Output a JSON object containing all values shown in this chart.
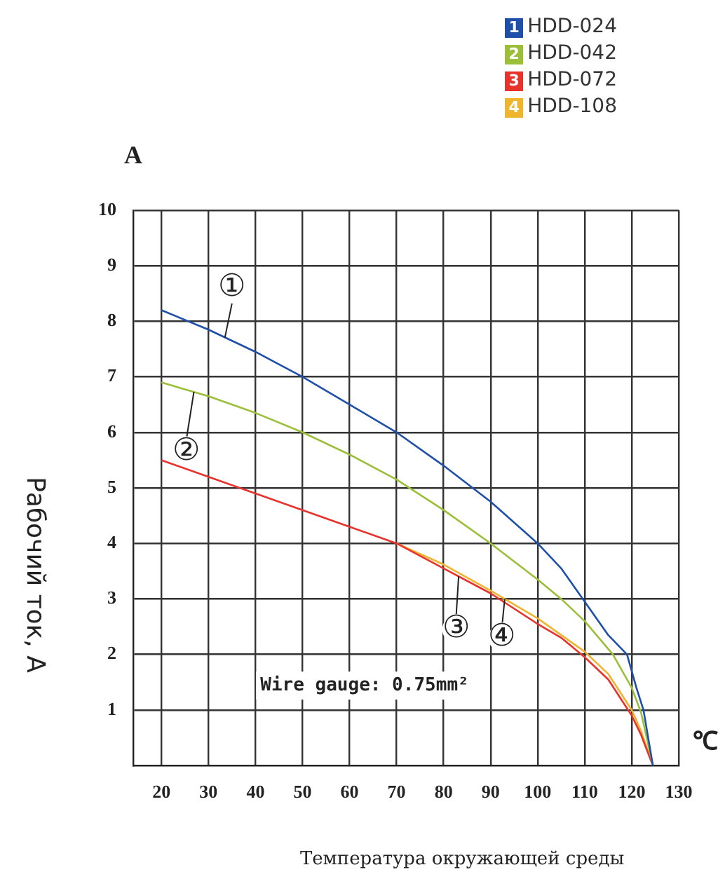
{
  "chart_data": {
    "type": "line",
    "xlabel": "Температура окружающей среды",
    "ylabel": "Рабочий ток, А",
    "xlim": [
      14,
      130
    ],
    "xticks": [
      20,
      30,
      40,
      50,
      60,
      70,
      80,
      90,
      100,
      110,
      120,
      130
    ],
    "ylim": [
      0,
      10
    ],
    "yticks": [
      1,
      2,
      3,
      4,
      5,
      6,
      7,
      8,
      9,
      10
    ],
    "grid": true,
    "legend": "top right",
    "marker": "none",
    "line_style": "solid",
    "series": [
      {
        "name": "HDD-024",
        "color": "#1f4fa8",
        "x": [
          20,
          30,
          40,
          50,
          60,
          70,
          80,
          90,
          100,
          105,
          110,
          115,
          119,
          121,
          122.5,
          124.5
        ],
        "values": [
          8.2,
          7.85,
          7.45,
          7.0,
          6.5,
          6.0,
          5.4,
          4.75,
          4.0,
          3.55,
          2.95,
          2.35,
          2.0,
          1.4,
          1.0,
          0
        ]
      },
      {
        "name": "HDD-042",
        "color": "#9cbf3a",
        "x": [
          20,
          30,
          40,
          50,
          60,
          70,
          80,
          90,
          100,
          105,
          110,
          116,
          120,
          122,
          124.5
        ],
        "values": [
          6.9,
          6.65,
          6.35,
          6.0,
          5.6,
          5.15,
          4.6,
          4.0,
          3.35,
          3.0,
          2.6,
          2.0,
          1.4,
          0.95,
          0
        ]
      },
      {
        "name": "HDD-072",
        "color": "#e8322c",
        "x": [
          20,
          30,
          40,
          50,
          60,
          70,
          80,
          90,
          100,
          105,
          110,
          115,
          120,
          122,
          124.5
        ],
        "values": [
          5.5,
          5.2,
          4.9,
          4.6,
          4.3,
          4.0,
          3.55,
          3.1,
          2.55,
          2.3,
          1.95,
          1.55,
          0.9,
          0.55,
          0
        ]
      },
      {
        "name": "HDD-108",
        "color": "#f0b52e",
        "x": [
          70,
          80,
          90,
          100,
          110,
          115,
          120,
          122,
          124.5
        ],
        "values": [
          4.0,
          3.62,
          3.15,
          2.65,
          2.05,
          1.65,
          1.0,
          0.62,
          0
        ]
      }
    ],
    "annotations": [
      "A",
      "℃",
      "Wire gauge: 0.75mm²",
      "1",
      "2",
      "3",
      "4",
      {
        "text": "①",
        "x": 35,
        "y": 8.6
      },
      {
        "text": "②",
        "x": 25.4,
        "y": 5.65
      },
      {
        "text": "③",
        "x": 82.7,
        "y": 2.45
      },
      {
        "text": "④",
        "x": 92.5,
        "y": 2.3
      }
    ]
  }
}
